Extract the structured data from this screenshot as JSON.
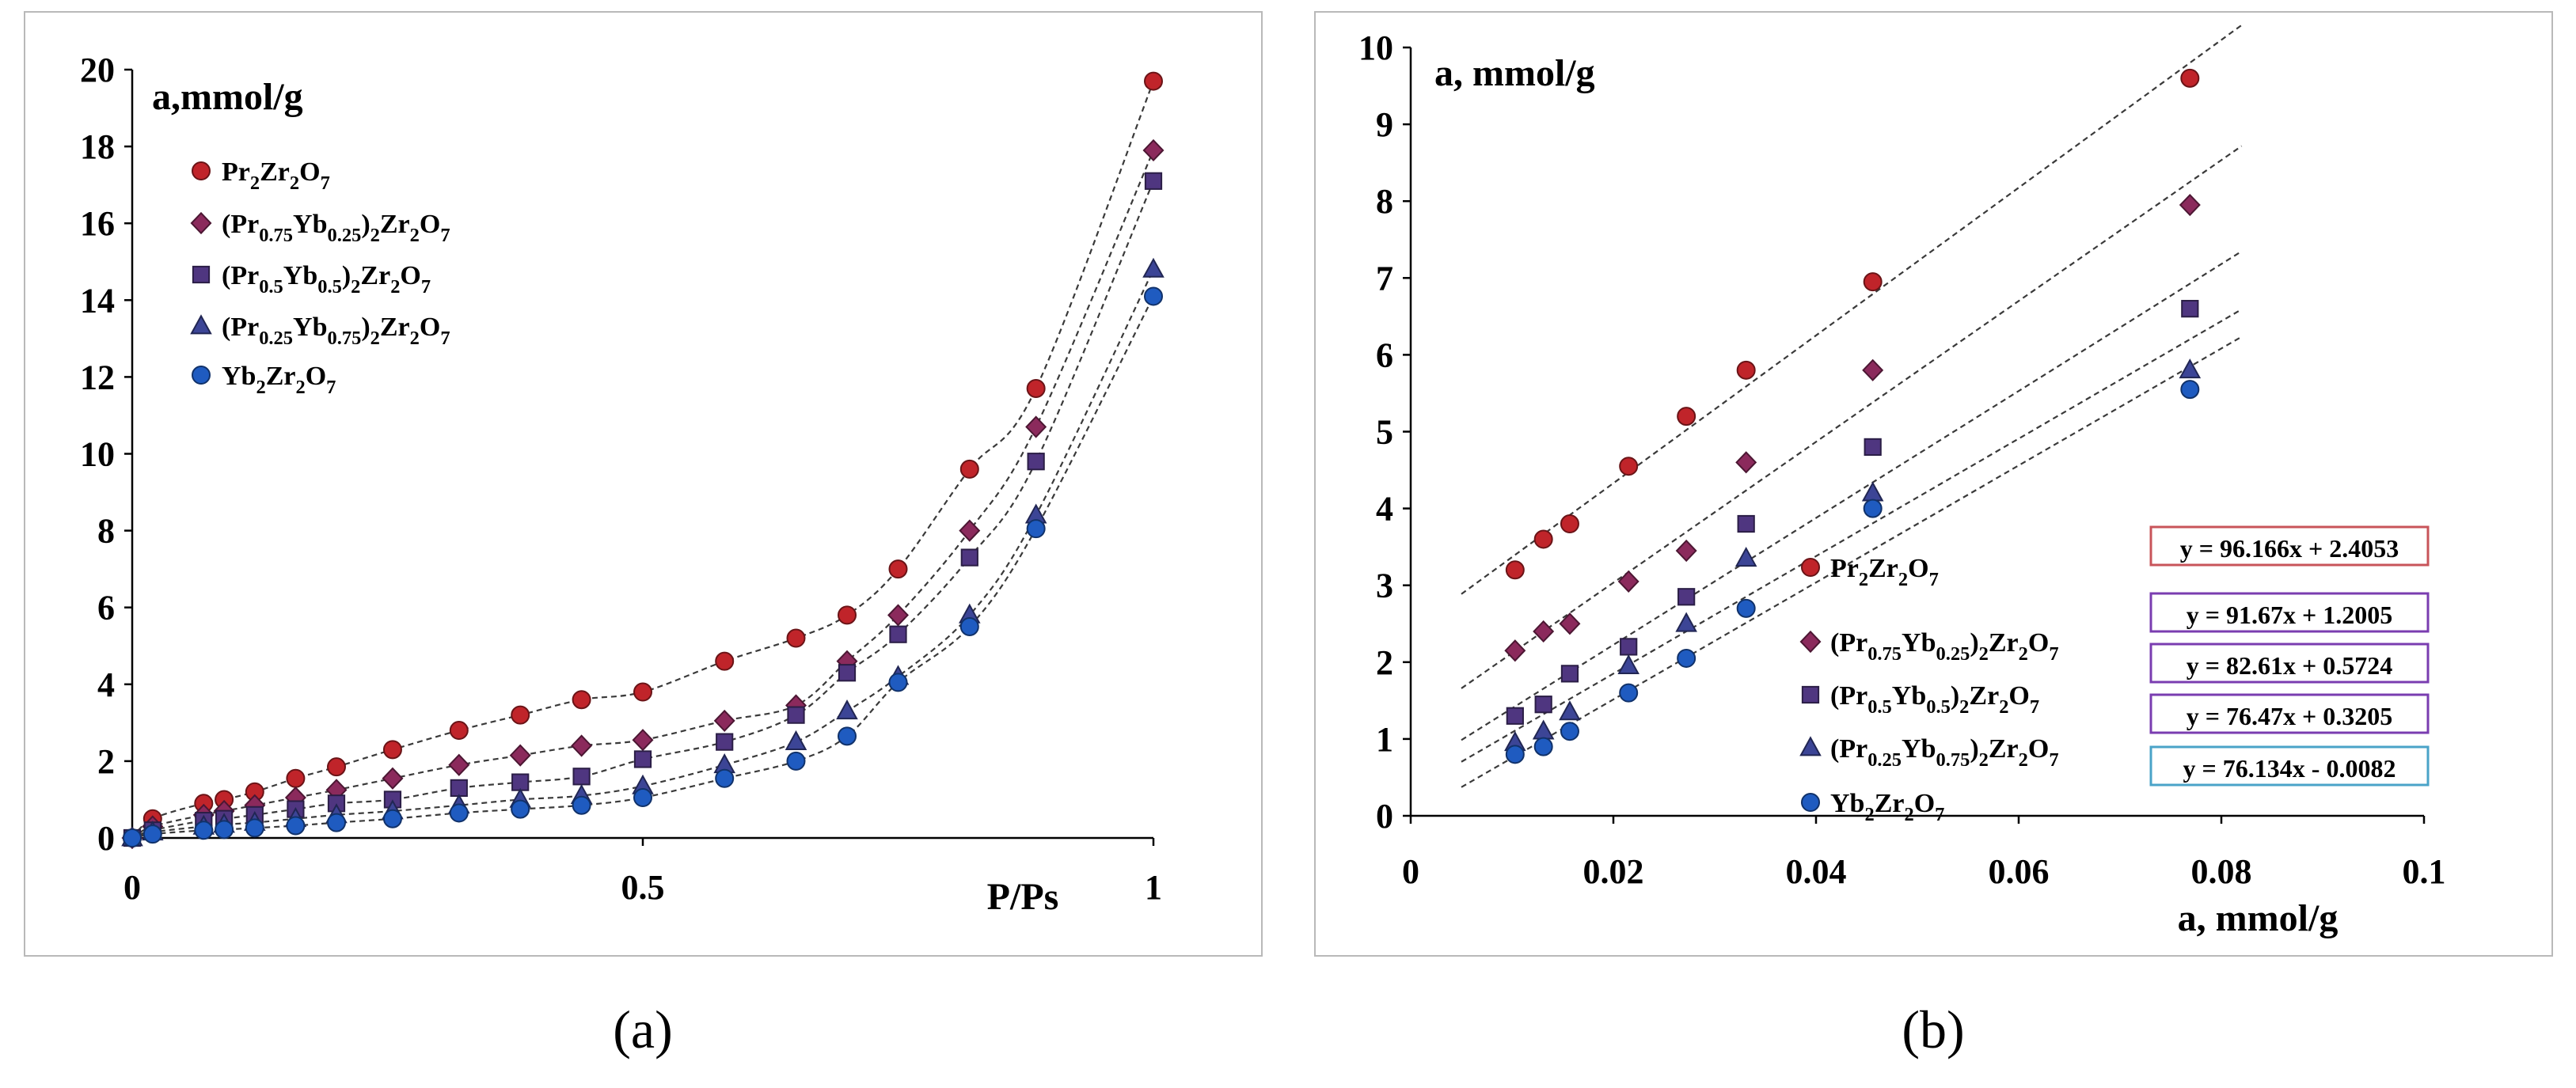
{
  "captions": {
    "a": "(a)",
    "b": "(b)"
  },
  "chart_data": [
    {
      "type": "scatter",
      "panel": "a",
      "title": "",
      "ylabel": "a,mmol/g",
      "xlabel": "P/Ps",
      "xlim": [
        0,
        1
      ],
      "ylim": [
        0,
        20
      ],
      "xticks": [
        0,
        0.5,
        1
      ],
      "xtick_labels": [
        "0",
        "0.5",
        "1"
      ],
      "yticks": [
        0,
        2,
        4,
        6,
        8,
        10,
        12,
        14,
        16,
        18,
        20
      ],
      "ytick_labels": [
        "0",
        "2",
        "4",
        "6",
        "8",
        "10",
        "12",
        "14",
        "16",
        "18",
        "20"
      ],
      "grid": false,
      "legend_position": "top-left",
      "line_style": "dashed connecting curve",
      "series": [
        {
          "name": "Pr2Zr2O7",
          "label_parts": [
            [
              "Pr",
              ""
            ],
            [
              "2",
              "sub"
            ],
            [
              "Zr",
              ""
            ],
            [
              "2",
              "sub"
            ],
            [
              "O",
              ""
            ],
            [
              "7",
              "sub"
            ]
          ],
          "marker": "circle",
          "color": "#c0242a",
          "x": [
            0,
            0.02,
            0.07,
            0.09,
            0.12,
            0.16,
            0.2,
            0.255,
            0.32,
            0.38,
            0.44,
            0.5,
            0.58,
            0.65,
            0.7,
            0.75,
            0.82,
            0.885,
            1.0
          ],
          "y": [
            0,
            0.5,
            0.9,
            1.0,
            1.2,
            1.55,
            1.85,
            2.3,
            2.8,
            3.2,
            3.6,
            3.8,
            4.6,
            5.2,
            5.8,
            7.0,
            9.6,
            11.7,
            19.7
          ]
        },
        {
          "name": "(Pr0.75Yb0.25)2Zr2O7",
          "label_parts": [
            [
              "(Pr",
              ""
            ],
            [
              "0.75",
              "sub"
            ],
            [
              "Yb",
              ""
            ],
            [
              "0.25",
              "sub"
            ],
            [
              ")",
              ""
            ],
            [
              "2",
              "sub"
            ],
            [
              "Zr",
              ""
            ],
            [
              "2",
              "sub"
            ],
            [
              "O",
              ""
            ],
            [
              "7",
              "sub"
            ]
          ],
          "marker": "diamond",
          "color": "#8b2a5c",
          "x": [
            0,
            0.02,
            0.07,
            0.09,
            0.12,
            0.16,
            0.2,
            0.255,
            0.32,
            0.38,
            0.44,
            0.5,
            0.58,
            0.65,
            0.7,
            0.75,
            0.82,
            0.885,
            1.0
          ],
          "y": [
            0,
            0.3,
            0.6,
            0.7,
            0.85,
            1.05,
            1.25,
            1.55,
            1.9,
            2.15,
            2.4,
            2.55,
            3.05,
            3.45,
            4.6,
            5.8,
            8.0,
            10.7,
            17.9
          ]
        },
        {
          "name": "(Pr0.5Yb0.5)2Zr2O7",
          "label_parts": [
            [
              "(Pr",
              ""
            ],
            [
              "0.5",
              "sub"
            ],
            [
              "Yb",
              ""
            ],
            [
              "0.5",
              "sub"
            ],
            [
              ")",
              ""
            ],
            [
              "2",
              "sub"
            ],
            [
              "Zr",
              ""
            ],
            [
              "2",
              "sub"
            ],
            [
              "O",
              ""
            ],
            [
              "7",
              "sub"
            ]
          ],
          "marker": "square",
          "color": "#4f3680",
          "x": [
            0,
            0.02,
            0.07,
            0.09,
            0.12,
            0.16,
            0.2,
            0.255,
            0.32,
            0.38,
            0.44,
            0.5,
            0.58,
            0.65,
            0.7,
            0.75,
            0.82,
            0.885,
            1.0
          ],
          "y": [
            0,
            0.2,
            0.45,
            0.5,
            0.6,
            0.75,
            0.9,
            1.0,
            1.3,
            1.45,
            1.6,
            2.05,
            2.5,
            3.2,
            4.3,
            5.3,
            7.3,
            9.8,
            17.1
          ]
        },
        {
          "name": "(Pr0.25Yb0.75)2Zr2O7",
          "label_parts": [
            [
              "(Pr",
              ""
            ],
            [
              "0.25",
              "sub"
            ],
            [
              "Yb",
              ""
            ],
            [
              "0.75",
              "sub"
            ],
            [
              ")",
              ""
            ],
            [
              "2",
              "sub"
            ],
            [
              "Zr",
              ""
            ],
            [
              "2",
              "sub"
            ],
            [
              "O",
              ""
            ],
            [
              "7",
              "sub"
            ]
          ],
          "marker": "triangle",
          "color": "#3c4596",
          "x": [
            0,
            0.02,
            0.07,
            0.09,
            0.12,
            0.16,
            0.2,
            0.255,
            0.32,
            0.38,
            0.44,
            0.5,
            0.58,
            0.65,
            0.7,
            0.75,
            0.82,
            0.885,
            1.0
          ],
          "y": [
            0,
            0.15,
            0.3,
            0.35,
            0.4,
            0.5,
            0.6,
            0.7,
            0.85,
            1.0,
            1.1,
            1.35,
            1.9,
            2.5,
            3.3,
            4.2,
            5.8,
            8.4,
            14.8
          ]
        },
        {
          "name": "Yb2Zr2O7",
          "label_parts": [
            [
              "Yb",
              ""
            ],
            [
              "2",
              "sub"
            ],
            [
              "Zr",
              ""
            ],
            [
              "2",
              "sub"
            ],
            [
              "O",
              ""
            ],
            [
              "7",
              "sub"
            ]
          ],
          "marker": "circle",
          "color": "#1f5bc0",
          "x": [
            0,
            0.02,
            0.07,
            0.09,
            0.12,
            0.16,
            0.2,
            0.255,
            0.32,
            0.38,
            0.44,
            0.5,
            0.58,
            0.65,
            0.7,
            0.75,
            0.82,
            0.885,
            1.0
          ],
          "y": [
            0,
            0.1,
            0.2,
            0.22,
            0.26,
            0.32,
            0.4,
            0.5,
            0.65,
            0.75,
            0.85,
            1.05,
            1.55,
            2.0,
            2.65,
            4.05,
            5.5,
            8.05,
            14.1
          ]
        }
      ]
    },
    {
      "type": "scatter",
      "panel": "b",
      "title": "",
      "ylabel": "a, mmol/g",
      "xlabel": "a, mmol/g",
      "xlim": [
        0,
        0.1
      ],
      "ylim": [
        0,
        10
      ],
      "xticks": [
        0,
        0.02,
        0.04,
        0.06,
        0.08,
        0.1
      ],
      "xtick_labels": [
        "0",
        "0.02",
        "0.04",
        "0.06",
        "0.08",
        "0.1"
      ],
      "yticks": [
        0,
        1,
        2,
        3,
        4,
        5,
        6,
        7,
        8,
        9,
        10
      ],
      "ytick_labels": [
        "0",
        "1",
        "2",
        "3",
        "4",
        "5",
        "6",
        "7",
        "8",
        "9",
        "10"
      ],
      "grid": false,
      "legend_position": "bottom-right",
      "trendline_range": [
        0.005,
        0.082
      ],
      "series": [
        {
          "name": "Pr2Zr2O7",
          "label_parts": [
            [
              "Pr",
              ""
            ],
            [
              "2",
              "sub"
            ],
            [
              "Zr",
              ""
            ],
            [
              "2",
              "sub"
            ],
            [
              "O",
              ""
            ],
            [
              "7",
              "sub"
            ]
          ],
          "marker": "circle",
          "color": "#c0242a",
          "eq_border": "#c8545a",
          "equation": "y = 96.166x + 2.4053",
          "slope": 96.166,
          "intercept": 2.4053,
          "x": [
            0.0103,
            0.0131,
            0.0157,
            0.0215,
            0.0272,
            0.0331,
            0.0456,
            0.0769
          ],
          "y": [
            3.2,
            3.6,
            3.8,
            4.55,
            5.2,
            5.8,
            6.95,
            9.6
          ]
        },
        {
          "name": "(Pr0.75Yb0.25)2Zr2O7",
          "label_parts": [
            [
              "(Pr",
              ""
            ],
            [
              "0.75",
              "sub"
            ],
            [
              "Yb",
              ""
            ],
            [
              "0.25",
              "sub"
            ],
            [
              ")",
              ""
            ],
            [
              "2",
              "sub"
            ],
            [
              "Zr",
              ""
            ],
            [
              "2",
              "sub"
            ],
            [
              "O",
              ""
            ],
            [
              "7",
              "sub"
            ]
          ],
          "marker": "diamond",
          "color": "#8b2a5c",
          "eq_border": "#7a3db0",
          "equation": "y = 91.67x + 1.2005",
          "slope": 91.67,
          "intercept": 1.2005,
          "x": [
            0.0103,
            0.0131,
            0.0157,
            0.0215,
            0.0272,
            0.0331,
            0.0456,
            0.0769
          ],
          "y": [
            2.15,
            2.4,
            2.5,
            3.05,
            3.45,
            4.6,
            5.8,
            7.95
          ]
        },
        {
          "name": "(Pr0.5Yb0.5)2Zr2O7",
          "label_parts": [
            [
              "(Pr",
              ""
            ],
            [
              "0.5",
              "sub"
            ],
            [
              "Yb",
              ""
            ],
            [
              "0.5",
              "sub"
            ],
            [
              ")",
              ""
            ],
            [
              "2",
              "sub"
            ],
            [
              "Zr",
              ""
            ],
            [
              "2",
              "sub"
            ],
            [
              "O",
              ""
            ],
            [
              "7",
              "sub"
            ]
          ],
          "marker": "square",
          "color": "#4f3680",
          "eq_border": "#7a3db0",
          "equation": "y = 82.61x + 0.5724",
          "slope": 82.61,
          "intercept": 0.5724,
          "x": [
            0.0103,
            0.0131,
            0.0157,
            0.0215,
            0.0272,
            0.0331,
            0.0456,
            0.0769
          ],
          "y": [
            1.3,
            1.45,
            1.85,
            2.2,
            2.85,
            3.8,
            4.8,
            6.6
          ]
        },
        {
          "name": "(Pr0.25Yb0.75)2Zr2O7",
          "label_parts": [
            [
              "(Pr",
              ""
            ],
            [
              "0.25",
              "sub"
            ],
            [
              "Yb",
              ""
            ],
            [
              "0.75",
              "sub"
            ],
            [
              ")",
              ""
            ],
            [
              "2",
              "sub"
            ],
            [
              "Zr",
              ""
            ],
            [
              "2",
              "sub"
            ],
            [
              "O",
              ""
            ],
            [
              "7",
              "sub"
            ]
          ],
          "marker": "triangle",
          "color": "#3c4596",
          "eq_border": "#7a3db0",
          "equation": "y = 76.47x + 0.3205",
          "slope": 76.47,
          "intercept": 0.3205,
          "x": [
            0.0103,
            0.0131,
            0.0157,
            0.0215,
            0.0272,
            0.0331,
            0.0456,
            0.0769
          ],
          "y": [
            0.95,
            1.1,
            1.35,
            1.95,
            2.5,
            3.35,
            4.2,
            5.8
          ]
        },
        {
          "name": "Yb2Zr2O7",
          "label_parts": [
            [
              "Yb",
              ""
            ],
            [
              "2",
              "sub"
            ],
            [
              "Zr",
              ""
            ],
            [
              "2",
              "sub"
            ],
            [
              "O",
              ""
            ],
            [
              "7",
              "sub"
            ]
          ],
          "marker": "circle",
          "color": "#1f5bc0",
          "eq_border": "#4aa3c8",
          "equation": "y = 76.134x - 0.0082",
          "slope": 76.134,
          "intercept": -0.0082,
          "x": [
            0.0103,
            0.0131,
            0.0157,
            0.0215,
            0.0272,
            0.0331,
            0.0456,
            0.0769
          ],
          "y": [
            0.8,
            0.9,
            1.1,
            1.6,
            2.05,
            2.7,
            4.0,
            5.55
          ]
        }
      ]
    }
  ]
}
